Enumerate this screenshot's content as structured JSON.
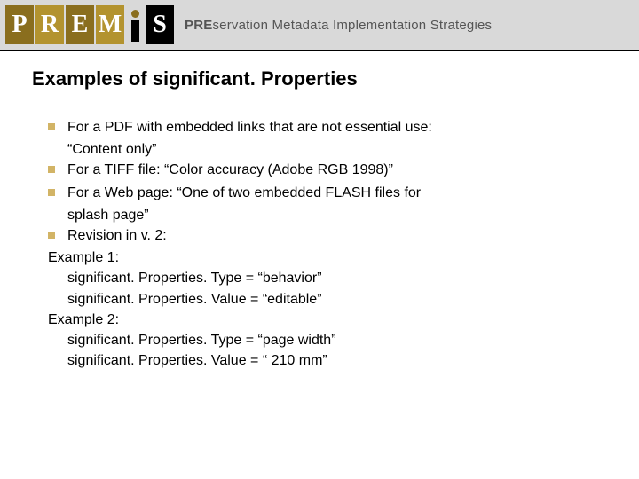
{
  "colors": {
    "header_bg": "#d9d9d9",
    "logo_bg_a": "#8a6e1e",
    "logo_bg_b": "#b3932f",
    "logo_i_dot": "#8a6e1e",
    "logo_i_stem": "#000000",
    "logo_s_bg": "#000000",
    "bullet": "#d2b466",
    "tagline": "#555555",
    "text": "#000000"
  },
  "logo": {
    "letters": [
      "P",
      "R",
      "E",
      "M",
      "S"
    ],
    "tagline_bold": "PRE",
    "tagline_rest": "servation Metadata Implementation Strategies"
  },
  "title": "Examples of significant. Properties",
  "bullets": [
    {
      "first": "For a PDF with embedded links that are not essential use:",
      "cont": [
        "“Content only”"
      ]
    },
    {
      "first": "For a TIFF file: “Color accuracy (Adobe RGB 1998)”",
      "cont": []
    },
    {
      "first": "For a Web page: “One of two embedded FLASH files for",
      "cont": [
        "splash page”"
      ]
    },
    {
      "first": "Revision in v. 2:",
      "cont": []
    }
  ],
  "examples": [
    {
      "label": "Example 1:",
      "lines": [
        "significant. Properties. Type = “behavior”",
        "significant. Properties. Value = “editable”"
      ]
    },
    {
      "label": "Example 2:",
      "lines": [
        "significant. Properties. Type = “page width”",
        "significant. Properties. Value = “ 210 mm”"
      ]
    }
  ]
}
